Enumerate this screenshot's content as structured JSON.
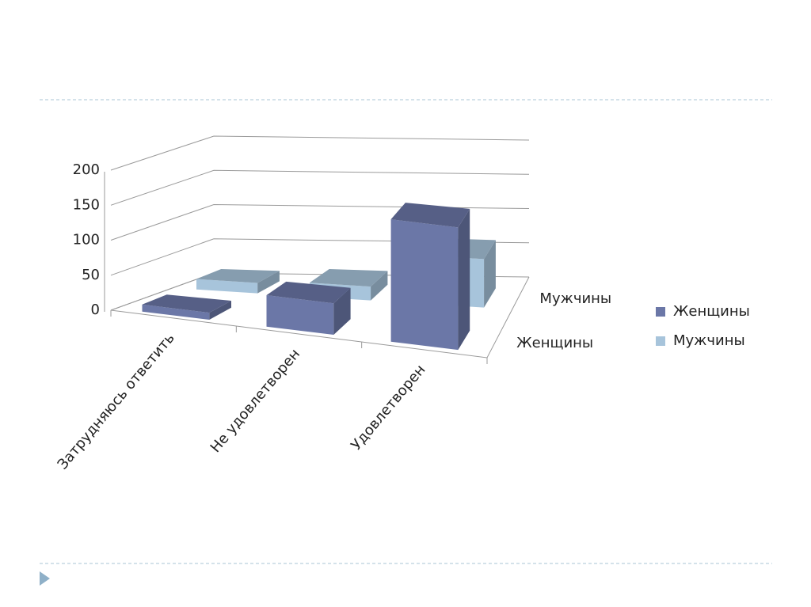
{
  "chart_data": {
    "type": "bar",
    "categories": [
      "Затрудняюсь ответить",
      "Не удовлетворен",
      "Удовлетворен"
    ],
    "series": [
      {
        "name": "Женщины",
        "color": "#6b77a7",
        "values": [
          10,
          45,
          175
        ]
      },
      {
        "name": "Мужчины",
        "color": "#a7c4db",
        "values": [
          15,
          20,
          70
        ]
      }
    ],
    "ylim": [
      0,
      200
    ],
    "yticks": [
      0,
      50,
      100,
      150,
      200
    ],
    "grid": true,
    "legend": "right"
  }
}
